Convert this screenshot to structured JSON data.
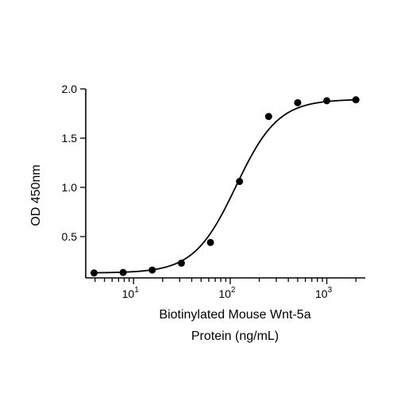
{
  "chart_data": {
    "type": "scatter",
    "xlabel_line1": "Biotinylated Mouse Wnt-5a",
    "xlabel_line2": "Protein (ng/mL)",
    "ylabel": "OD 450nm",
    "x_scale": "log10",
    "xlim": [
      3.2,
      2500
    ],
    "ylim": [
      0.08,
      2.0
    ],
    "y_ticks": [
      {
        "value": 0.5,
        "label": "0.5"
      },
      {
        "value": 1.0,
        "label": "1.0"
      },
      {
        "value": 1.5,
        "label": "1.5"
      },
      {
        "value": 2.0,
        "label": "2.0"
      }
    ],
    "x_major_ticks": [
      {
        "value": 10,
        "base": "10",
        "exp": "1"
      },
      {
        "value": 100,
        "base": "10",
        "exp": "2"
      },
      {
        "value": 1000,
        "base": "10",
        "exp": "3"
      }
    ],
    "grid": false,
    "legend": "none",
    "series": [
      {
        "x": [
          3.9,
          7.8,
          15.6,
          31.25,
          62.5,
          125,
          250,
          500,
          1000,
          2000
        ],
        "y": [
          0.13,
          0.135,
          0.16,
          0.23,
          0.44,
          1.06,
          1.72,
          1.86,
          1.88,
          1.89
        ],
        "fit": "4PL",
        "fit_params": {
          "bottom": 0.13,
          "top": 1.895,
          "ec50": 115,
          "hill": 2.0
        }
      }
    ]
  }
}
